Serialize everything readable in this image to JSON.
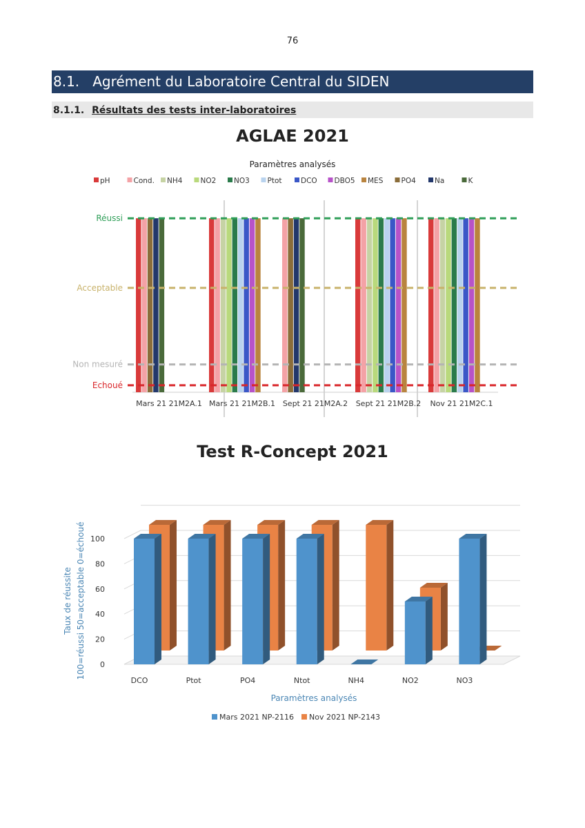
{
  "page": {
    "number": "76",
    "section_number": "8.1.",
    "section_title": "Agrément du Laboratoire Central du SIDEN",
    "subsection_number": "8.1.1.",
    "subsection_title": "Résultats des tests inter-laboratoires"
  },
  "chart_data": [
    {
      "type": "bar",
      "title": "AGLAE 2021",
      "subtitle": "Paramètres analysés",
      "legend_position": "top",
      "levels": [
        {
          "name": "Réussi",
          "value": 100,
          "color": "#2e9e57"
        },
        {
          "name": "Acceptable",
          "value": 50,
          "color": "#c8b26a"
        },
        {
          "name": "Non mesuré",
          "value": -5,
          "color": "#b4b4b4"
        },
        {
          "name": "Echoué",
          "value": -20,
          "color": "#d9262a"
        }
      ],
      "categories": [
        "Mars 21 21M2A.1",
        "Mars 21 21M2B.1",
        "Sept 21 21M2A.2",
        "Sept 21 21M2B.2",
        "Nov 21 21M2C.1"
      ],
      "series": [
        {
          "name": "pH",
          "color": "#d93a3a",
          "values": [
            100,
            100,
            null,
            100,
            100
          ]
        },
        {
          "name": "Cond.",
          "color": "#f4a2a6",
          "values": [
            100,
            100,
            100,
            100,
            100
          ]
        },
        {
          "name": "NH4",
          "color": "#c6d3a4",
          "values": [
            null,
            100,
            null,
            100,
            100
          ]
        },
        {
          "name": "NO2",
          "color": "#b9d97c",
          "values": [
            null,
            100,
            null,
            100,
            100
          ]
        },
        {
          "name": "NO3",
          "color": "#2b7b4b",
          "values": [
            null,
            100,
            null,
            100,
            100
          ]
        },
        {
          "name": "Ptot",
          "color": "#b9d3ee",
          "values": [
            null,
            100,
            null,
            100,
            100
          ]
        },
        {
          "name": "DCO",
          "color": "#3a57c7",
          "values": [
            null,
            100,
            null,
            100,
            100
          ]
        },
        {
          "name": "DBO5",
          "color": "#b753c9",
          "values": [
            null,
            100,
            null,
            100,
            100
          ]
        },
        {
          "name": "MES",
          "color": "#b9843f",
          "values": [
            null,
            100,
            null,
            100,
            100
          ]
        },
        {
          "name": "PO4",
          "color": "#8b6d3a",
          "values": [
            100,
            null,
            100,
            null,
            null
          ]
        },
        {
          "name": "Na",
          "color": "#23386b",
          "values": [
            100,
            null,
            100,
            null,
            null
          ]
        },
        {
          "name": "K",
          "color": "#4a6a3a",
          "values": [
            100,
            null,
            100,
            null,
            null
          ]
        }
      ],
      "ylim": [
        -25,
        105
      ]
    },
    {
      "type": "bar",
      "title": "Test R-Concept 2021",
      "xlabel": "Paramètres analysés",
      "ylabel_lines": [
        "Taux de réussite",
        "100=réussi  50=acceptable  0=échoué"
      ],
      "categories": [
        "DCO",
        "Ptot",
        "PO4",
        "Ntot",
        "NH4",
        "NO2",
        "NO3"
      ],
      "yticks": [
        0,
        20,
        40,
        60,
        80,
        100
      ],
      "ylim": [
        0,
        120
      ],
      "legend_position": "bottom",
      "series": [
        {
          "name": "Mars 2021 NP-2116",
          "color": "#4f93cc",
          "values": [
            100,
            100,
            100,
            100,
            0,
            50,
            100
          ]
        },
        {
          "name": "Nov 2021 NP-2143",
          "color": "#e98345",
          "values": [
            100,
            100,
            100,
            100,
            100,
            50,
            0
          ]
        }
      ]
    }
  ]
}
